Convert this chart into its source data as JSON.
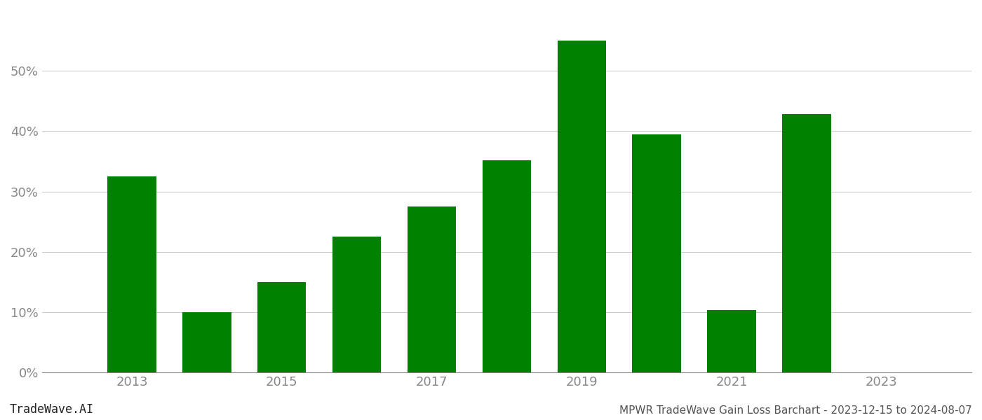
{
  "years": [
    2013,
    2014,
    2015,
    2016,
    2017,
    2018,
    2019,
    2020,
    2021,
    2022
  ],
  "values": [
    0.325,
    0.1,
    0.15,
    0.225,
    0.275,
    0.352,
    0.55,
    0.395,
    0.103,
    0.428
  ],
  "bar_color": "#008000",
  "background_color": "#ffffff",
  "grid_color": "#cccccc",
  "tick_label_color": "#888888",
  "ylim": [
    0,
    0.6
  ],
  "yticks": [
    0.0,
    0.1,
    0.2,
    0.3,
    0.4,
    0.5
  ],
  "xtick_labels": [
    "2013",
    "2015",
    "2017",
    "2019",
    "2021",
    "2023"
  ],
  "xtick_positions": [
    2013,
    2015,
    2017,
    2019,
    2021,
    2023
  ],
  "xlim": [
    2011.8,
    2024.2
  ],
  "footer_left": "TradeWave.AI",
  "footer_right": "MPWR TradeWave Gain Loss Barchart - 2023-12-15 to 2024-08-07",
  "bar_width": 0.65
}
